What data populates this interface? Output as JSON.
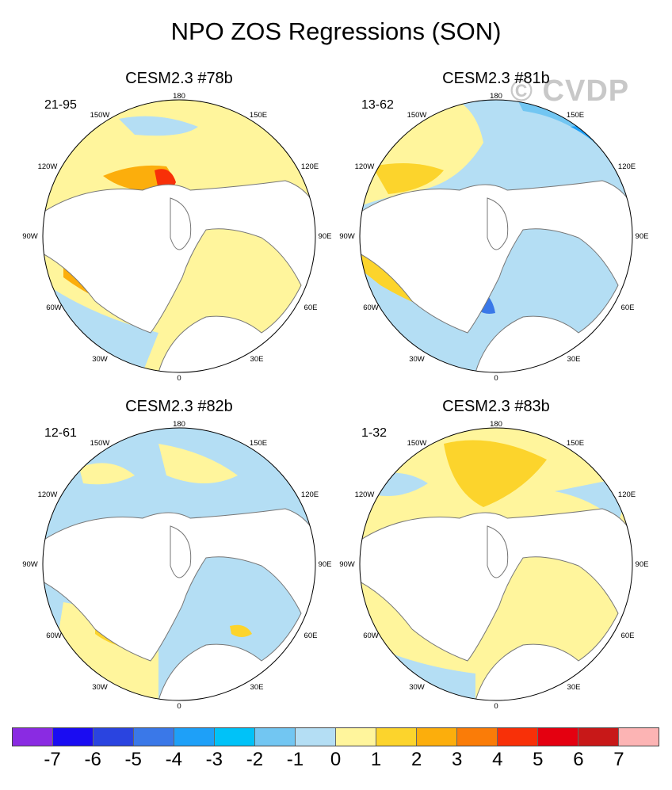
{
  "title": "NPO ZOS Regressions (SON)",
  "watermark": "© CVDP",
  "panels": [
    {
      "title": "CESM2.3 #78b",
      "period": "21-95"
    },
    {
      "title": "CESM2.3 #81b",
      "period": "13-62"
    },
    {
      "title": "CESM2.3 #82b",
      "period": "12-61"
    },
    {
      "title": "CESM2.3 #83b",
      "period": "1-32"
    }
  ],
  "lon_labels": {
    "top": "180",
    "tr": "150E",
    "r1": "120E",
    "r2": "90E",
    "r3": "60E",
    "br": "30E",
    "bottom": "0",
    "bl": "30W",
    "l3": "60W",
    "l2": "90W",
    "l1": "120W",
    "tl": "150W"
  },
  "legend": {
    "ticks": [
      "-7",
      "-6",
      "-5",
      "-4",
      "-3",
      "-2",
      "-1",
      "0",
      "1",
      "2",
      "3",
      "4",
      "5",
      "6",
      "7"
    ],
    "colors": [
      "#8a2be2",
      "#1a0cf2",
      "#2a44e0",
      "#3a78e8",
      "#1ea0f8",
      "#00c2f8",
      "#72c6f2",
      "#b4def4",
      "#fff59c",
      "#fcd42c",
      "#fcae0c",
      "#fa7c08",
      "#f83008",
      "#e40010",
      "#c81818",
      "#fcb4b4"
    ]
  }
}
